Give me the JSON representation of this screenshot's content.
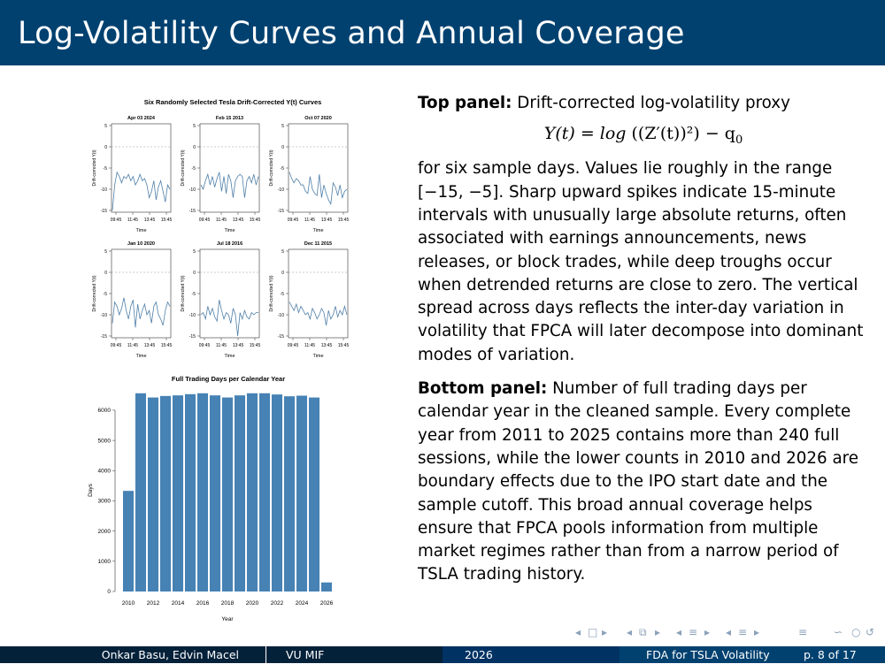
{
  "title": "Log-Volatility Curves and Annual Coverage",
  "chart_data": [
    {
      "type": "line",
      "title": "Six Randomly Selected Tesla Drift-Corrected Y(t) Curves",
      "xlabel": "Time",
      "ylabel": "Drift-corrected Y(t)",
      "x_ticks": [
        "09:45",
        "11:45",
        "13:45",
        "15:45"
      ],
      "y_ticks": [
        5,
        0,
        -5,
        -10,
        -15
      ],
      "ylim": [
        -15,
        5
      ],
      "reference_line": 0,
      "grid": false,
      "color": "#4f7fa8",
      "panels": [
        {
          "title": "Apr 03 2024",
          "values": [
            -15,
            -9,
            -6,
            -7,
            -8.5,
            -7,
            -7.5,
            -6.5,
            -8,
            -7,
            -9,
            -8,
            -6.5,
            -8,
            -7.5,
            -9,
            -12,
            -10.5,
            -8,
            -12.5,
            -9.5,
            -8,
            -10.5,
            -13,
            -9,
            -10
          ]
        },
        {
          "title": "Feb 15 2013",
          "values": [
            -9,
            -10,
            -8,
            -6.5,
            -9,
            -7,
            -9.5,
            -7.5,
            -6,
            -10.5,
            -7,
            -11,
            -6.5,
            -8,
            -12,
            -8,
            -7,
            -6.5,
            -7,
            -12,
            -8,
            -7,
            -8.5,
            -6.5,
            -9,
            -7
          ]
        },
        {
          "title": "Oct 07 2020",
          "values": [
            -6,
            -7.5,
            -8.5,
            -7.5,
            -8,
            -9,
            -9,
            -10.5,
            -11,
            -7,
            -10,
            -11,
            -11.5,
            -6.5,
            -12,
            -9,
            -11,
            -12.5,
            -13.5,
            -8.5,
            -9.5,
            -11.5,
            -9,
            -12,
            -10.5,
            -10
          ]
        },
        {
          "title": "Jan 10 2020",
          "values": [
            -12,
            -7,
            -8,
            -10,
            -8.5,
            -6,
            -9,
            -11,
            -8,
            -6.5,
            -13,
            -7.5,
            -11,
            -9,
            -7.5,
            -10,
            -9,
            -12,
            -8,
            -7,
            -10,
            -11,
            -12.5,
            -9,
            -7,
            -8
          ]
        },
        {
          "title": "Jul 18 2016",
          "values": [
            -10,
            -9.5,
            -11,
            -8,
            -10,
            -8.5,
            -10.5,
            -11.5,
            -6.5,
            -9,
            -11,
            -9.5,
            -10,
            -12,
            -8.5,
            -10,
            -15,
            -9.5,
            -11,
            -9,
            -10.5,
            -11,
            -9.5,
            -10,
            -9.5,
            -9.5
          ]
        },
        {
          "title": "Dec 11 2015",
          "values": [
            -7,
            -8,
            -9,
            -7.5,
            -9.5,
            -8,
            -9,
            -10,
            -9.5,
            -11,
            -8.5,
            -9.5,
            -11,
            -10,
            -8.5,
            -9.5,
            -12.5,
            -9,
            -11,
            -10,
            -8,
            -10.5,
            -9,
            -10,
            -8,
            -10
          ]
        }
      ]
    },
    {
      "type": "bar",
      "title": "Full Trading Days per Calendar Year",
      "xlabel": "Year",
      "ylabel": "Days",
      "categories": [
        "2010",
        "2011",
        "2012",
        "2013",
        "2014",
        "2015",
        "2016",
        "2017",
        "2018",
        "2019",
        "2020",
        "2021",
        "2022",
        "2023",
        "2024",
        "2025",
        "2026"
      ],
      "x_tick_labels": [
        "2010",
        "2012",
        "2014",
        "2016",
        "2018",
        "2020",
        "2022",
        "2024",
        "2026"
      ],
      "values": [
        3330,
        6560,
        6420,
        6470,
        6490,
        6530,
        6560,
        6490,
        6420,
        6490,
        6560,
        6560,
        6520,
        6460,
        6480,
        6420,
        300
      ],
      "y_ticks": [
        0,
        1000,
        2000,
        3000,
        4000,
        5000,
        6000
      ],
      "ylim": [
        0,
        6700
      ],
      "color": "#4682b4"
    }
  ],
  "text": {
    "top_label": "Top panel:",
    "top_intro": "Drift-corrected log-volatility proxy",
    "formula_lhs": "Y(t) = log",
    "formula_inner": "((Z′(t))²)",
    "formula_rhs": "− q",
    "formula_sub": "0",
    "top_body": "for six sample days. Values lie roughly in the range [−15, −5]. Sharp upward spikes indicate 15-minute intervals with unusually large absolute returns, often associated with earnings announcements, news releases, or block trades, while deep troughs occur when detrended returns are close to zero. The vertical spread across days reflects the inter-day variation in volatility that FPCA will later decompose into dominant modes of variation.",
    "bottom_label": "Bottom panel:",
    "bottom_body": "Number of full trading days per calendar year in the cleaned sample. Every complete year from 2011 to 2025 contains more than 240 full sessions, while the lower counts in 2010 and 2026 are boundary effects due to the IPO start date and the sample cutoff. This broad annual coverage helps ensure that FPCA pools information from multiple market regimes rather than from a narrow period of TSLA trading history."
  },
  "footer": {
    "authors": "Onkar Basu, Edvin Macel",
    "institute": "VU MIF",
    "date": "2026",
    "short_title": "FDA for TSLA Volatility",
    "page": "p. 8 of 17"
  }
}
